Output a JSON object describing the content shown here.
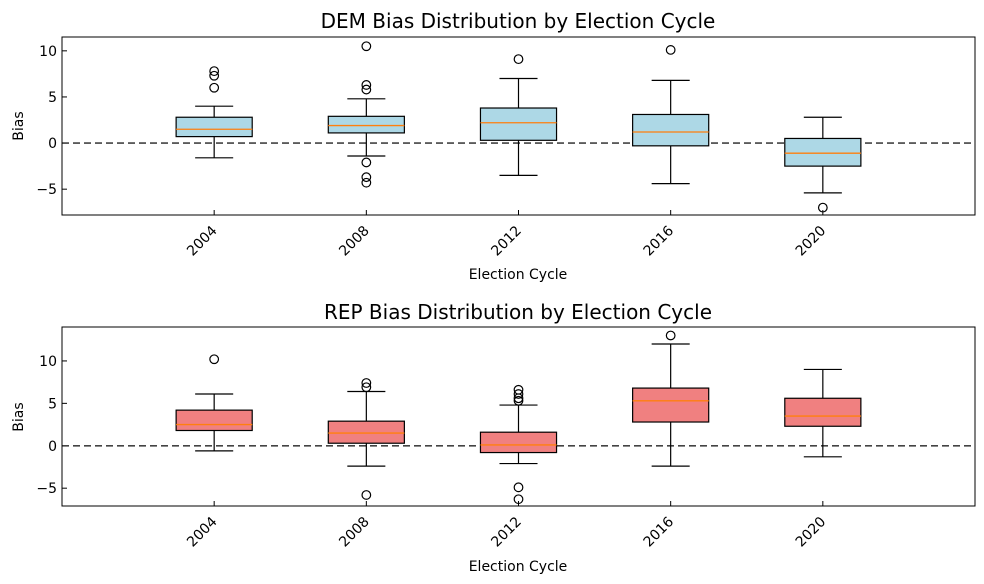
{
  "chart_data": [
    {
      "type": "box",
      "title": "DEM Bias Distribution by Election Cycle",
      "xlabel": "Election Cycle",
      "ylabel": "Bias",
      "categories": [
        "2004",
        "2008",
        "2012",
        "2016",
        "2020"
      ],
      "ylim": [
        -7.8,
        11.5
      ],
      "yticks": [
        -5,
        0,
        5,
        10
      ],
      "ytick_labels": [
        "−5",
        "0",
        "5",
        "10"
      ],
      "reference_line": 0,
      "box_color": "#add8e6",
      "boxes": [
        {
          "whisker_low": -1.6,
          "q1": 0.7,
          "median": 1.5,
          "q3": 2.8,
          "whisker_high": 4.0,
          "fliers": [
            7.8,
            7.3,
            6.0
          ]
        },
        {
          "whisker_low": -1.4,
          "q1": 1.1,
          "median": 1.9,
          "q3": 2.9,
          "whisker_high": 4.8,
          "fliers": [
            10.5,
            6.3,
            5.8,
            -2.1,
            -3.7,
            -4.3
          ]
        },
        {
          "whisker_low": -3.5,
          "q1": 0.3,
          "median": 2.2,
          "q3": 3.8,
          "whisker_high": 7.0,
          "fliers": [
            9.1
          ]
        },
        {
          "whisker_low": -4.4,
          "q1": -0.3,
          "median": 1.2,
          "q3": 3.1,
          "whisker_high": 6.8,
          "fliers": [
            10.1
          ]
        },
        {
          "whisker_low": -5.4,
          "q1": -2.5,
          "median": -1.1,
          "q3": 0.5,
          "whisker_high": 2.8,
          "fliers": [
            -7.0
          ]
        }
      ]
    },
    {
      "type": "box",
      "title": "REP Bias Distribution by Election Cycle",
      "xlabel": "Election Cycle",
      "ylabel": "Bias",
      "categories": [
        "2004",
        "2008",
        "2012",
        "2016",
        "2020"
      ],
      "ylim": [
        -7.1,
        14.0
      ],
      "yticks": [
        -5,
        0,
        5,
        10
      ],
      "ytick_labels": [
        "−5",
        "0",
        "5",
        "10"
      ],
      "reference_line": 0,
      "box_color": "#f08080",
      "boxes": [
        {
          "whisker_low": -0.6,
          "q1": 1.8,
          "median": 2.5,
          "q3": 4.2,
          "whisker_high": 6.1,
          "fliers": [
            10.2
          ]
        },
        {
          "whisker_low": -2.4,
          "q1": 0.3,
          "median": 1.5,
          "q3": 2.9,
          "whisker_high": 6.4,
          "fliers": [
            7.4,
            6.9,
            -5.8
          ]
        },
        {
          "whisker_low": -2.1,
          "q1": -0.8,
          "median": 0.1,
          "q3": 1.6,
          "whisker_high": 4.8,
          "fliers": [
            6.6,
            6.1,
            5.6,
            5.3,
            -4.9,
            -6.3
          ]
        },
        {
          "whisker_low": -2.4,
          "q1": 2.8,
          "median": 5.3,
          "q3": 6.8,
          "whisker_high": 12.0,
          "fliers": [
            13.0
          ]
        },
        {
          "whisker_low": -1.3,
          "q1": 2.3,
          "median": 3.5,
          "q3": 5.6,
          "whisker_high": 9.0,
          "fliers": []
        }
      ]
    }
  ],
  "colors": {
    "median": "#ff7f0e",
    "outline": "#000000",
    "reference_line": "#444444"
  }
}
